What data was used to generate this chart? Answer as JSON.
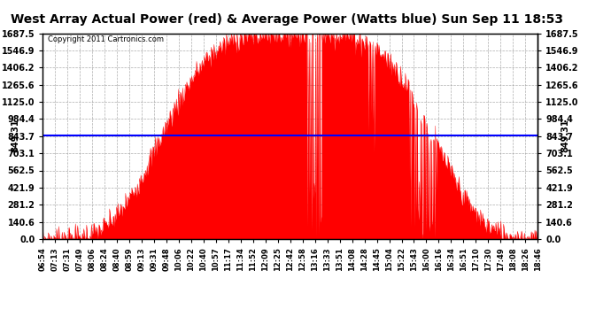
{
  "title": "West Array Actual Power (red) & Average Power (Watts blue) Sun Sep 11 18:53",
  "copyright": "Copyright 2011 Cartronics.com",
  "avg_power": 849.31,
  "ymax": 1687.5,
  "yticks": [
    0.0,
    140.625,
    281.25,
    421.875,
    562.5,
    703.125,
    843.75,
    984.375,
    1125.0,
    1265.625,
    1406.25,
    1546.875,
    1687.5
  ],
  "ytick_labels": [
    "0.0",
    "140.6",
    "281.2",
    "421.9",
    "562.5",
    "703.1",
    "843.7",
    "984.4",
    "1125.0",
    "1265.6",
    "1406.2",
    "1546.9",
    "1687.5"
  ],
  "avg_label": "849.31",
  "bar_color": "#FF0000",
  "line_color": "#0000FF",
  "background_color": "#FFFFFF",
  "grid_color": "#999999",
  "title_fontsize": 10,
  "xtick_labels": [
    "06:54",
    "07:13",
    "07:31",
    "07:49",
    "08:06",
    "08:24",
    "08:40",
    "08:59",
    "09:13",
    "09:31",
    "09:48",
    "10:06",
    "10:22",
    "10:40",
    "10:57",
    "11:17",
    "11:34",
    "11:52",
    "12:09",
    "12:25",
    "12:42",
    "12:58",
    "13:16",
    "13:33",
    "13:51",
    "14:08",
    "14:28",
    "14:45",
    "15:04",
    "15:22",
    "15:43",
    "16:00",
    "16:16",
    "16:34",
    "16:51",
    "17:10",
    "17:30",
    "17:49",
    "18:08",
    "18:26",
    "18:46"
  ]
}
